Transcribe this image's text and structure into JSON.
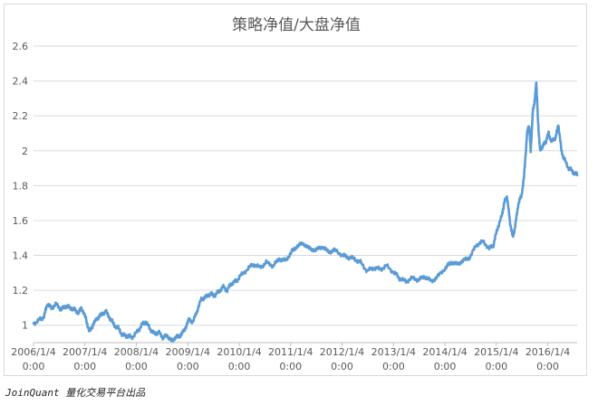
{
  "chart_data": {
    "type": "line",
    "title": "策略净值/大盘净值",
    "xlabel": "",
    "ylabel": "",
    "ylim": [
      0.0,
      2.6
    ],
    "y_ticks_shown": [
      1,
      1.2,
      1.4,
      1.6,
      1.8,
      2,
      2.2,
      2.4,
      2.6
    ],
    "y_tick_labels": [
      "1",
      "1.2",
      "1.4",
      "1.6",
      "1.8",
      "2",
      "2.2",
      "2.4",
      "2.6"
    ],
    "x_range": [
      "2006-01-04",
      "2016-07-31"
    ],
    "x_ticks": [
      {
        "date": "2006-01-04",
        "label": [
          "2006/1/4",
          "0:00"
        ]
      },
      {
        "date": "2007-01-04",
        "label": [
          "2007/1/4",
          "0:00"
        ]
      },
      {
        "date": "2008-01-04",
        "label": [
          "2008/1/4",
          "0:00"
        ]
      },
      {
        "date": "2009-01-04",
        "label": [
          "2009/1/4",
          "0:00"
        ]
      },
      {
        "date": "2010-01-04",
        "label": [
          "2010/1/4",
          "0:00"
        ]
      },
      {
        "date": "2011-01-04",
        "label": [
          "2011/1/4",
          "0:00"
        ]
      },
      {
        "date": "2012-01-04",
        "label": [
          "2012/1/4",
          "0:00"
        ]
      },
      {
        "date": "2013-01-04",
        "label": [
          "2013/1/4",
          "0:00"
        ]
      },
      {
        "date": "2014-01-04",
        "label": [
          "2014/1/4",
          "0:00"
        ]
      },
      {
        "date": "2015-01-04",
        "label": [
          "2015/1/4",
          "0:00"
        ]
      },
      {
        "date": "2016-01-04",
        "label": [
          "2016/1/4",
          "0:00"
        ]
      }
    ],
    "grid": true,
    "legend": "none",
    "series": [
      {
        "color": "#5b9bd5",
        "points": [
          [
            "2006-01-04",
            1.01
          ],
          [
            "2006-02-15",
            1.03
          ],
          [
            "2006-03-20",
            1.05
          ],
          [
            "2006-04-10",
            1.12
          ],
          [
            "2006-05-10",
            1.1
          ],
          [
            "2006-06-15",
            1.12
          ],
          [
            "2006-07-20",
            1.09
          ],
          [
            "2006-08-20",
            1.11
          ],
          [
            "2006-09-20",
            1.1
          ],
          [
            "2006-10-20",
            1.09
          ],
          [
            "2006-11-20",
            1.07
          ],
          [
            "2006-12-10",
            1.1
          ],
          [
            "2007-01-10",
            1.04
          ],
          [
            "2007-02-05",
            0.96
          ],
          [
            "2007-03-01",
            1.0
          ],
          [
            "2007-04-01",
            1.04
          ],
          [
            "2007-05-01",
            1.06
          ],
          [
            "2007-06-01",
            1.08
          ],
          [
            "2007-07-01",
            1.04
          ],
          [
            "2007-08-01",
            1.0
          ],
          [
            "2007-09-01",
            0.98
          ],
          [
            "2007-10-01",
            0.94
          ],
          [
            "2007-11-01",
            0.94
          ],
          [
            "2007-12-01",
            0.93
          ],
          [
            "2008-01-10",
            0.96
          ],
          [
            "2008-02-10",
            1.0
          ],
          [
            "2008-03-10",
            1.02
          ],
          [
            "2008-04-10",
            0.98
          ],
          [
            "2008-05-10",
            0.95
          ],
          [
            "2008-06-10",
            0.96
          ],
          [
            "2008-07-10",
            0.93
          ],
          [
            "2008-08-10",
            0.94
          ],
          [
            "2008-09-10",
            0.91
          ],
          [
            "2008-10-10",
            0.93
          ],
          [
            "2008-11-10",
            0.94
          ],
          [
            "2008-12-10",
            0.97
          ],
          [
            "2009-01-10",
            1.03
          ],
          [
            "2009-02-10",
            1.02
          ],
          [
            "2009-03-10",
            1.08
          ],
          [
            "2009-04-10",
            1.15
          ],
          [
            "2009-05-10",
            1.16
          ],
          [
            "2009-06-10",
            1.18
          ],
          [
            "2009-07-10",
            1.17
          ],
          [
            "2009-08-10",
            1.19
          ],
          [
            "2009-09-10",
            1.22
          ],
          [
            "2009-10-10",
            1.2
          ],
          [
            "2009-11-10",
            1.24
          ],
          [
            "2009-12-10",
            1.25
          ],
          [
            "2010-01-10",
            1.28
          ],
          [
            "2010-03-01",
            1.32
          ],
          [
            "2010-04-15",
            1.35
          ],
          [
            "2010-06-01",
            1.33
          ],
          [
            "2010-07-15",
            1.36
          ],
          [
            "2010-09-01",
            1.34
          ],
          [
            "2010-10-15",
            1.38
          ],
          [
            "2010-12-01",
            1.37
          ],
          [
            "2011-01-10",
            1.42
          ],
          [
            "2011-02-15",
            1.45
          ],
          [
            "2011-04-01",
            1.47
          ],
          [
            "2011-05-15",
            1.44
          ],
          [
            "2011-07-01",
            1.43
          ],
          [
            "2011-08-15",
            1.45
          ],
          [
            "2011-10-01",
            1.42
          ],
          [
            "2011-11-15",
            1.43
          ],
          [
            "2012-01-10",
            1.4
          ],
          [
            "2012-02-15",
            1.39
          ],
          [
            "2012-04-01",
            1.38
          ],
          [
            "2012-05-15",
            1.36
          ],
          [
            "2012-07-01",
            1.31
          ],
          [
            "2012-08-15",
            1.33
          ],
          [
            "2012-10-01",
            1.32
          ],
          [
            "2012-11-15",
            1.34
          ],
          [
            "2013-01-10",
            1.3
          ],
          [
            "2013-02-15",
            1.27
          ],
          [
            "2013-04-01",
            1.25
          ],
          [
            "2013-05-15",
            1.27
          ],
          [
            "2013-07-01",
            1.26
          ],
          [
            "2013-08-15",
            1.28
          ],
          [
            "2013-10-01",
            1.25
          ],
          [
            "2013-11-15",
            1.28
          ],
          [
            "2014-01-10",
            1.33
          ],
          [
            "2014-02-15",
            1.36
          ],
          [
            "2014-04-01",
            1.35
          ],
          [
            "2014-05-15",
            1.37
          ],
          [
            "2014-07-01",
            1.39
          ],
          [
            "2014-08-15",
            1.46
          ],
          [
            "2014-10-01",
            1.48
          ],
          [
            "2014-11-15",
            1.44
          ],
          [
            "2014-12-15",
            1.46
          ],
          [
            "2015-01-10",
            1.55
          ],
          [
            "2015-02-10",
            1.62
          ],
          [
            "2015-03-01",
            1.7
          ],
          [
            "2015-03-20",
            1.74
          ],
          [
            "2015-04-10",
            1.6
          ],
          [
            "2015-05-01",
            1.5
          ],
          [
            "2015-05-20",
            1.58
          ],
          [
            "2015-06-10",
            1.7
          ],
          [
            "2015-07-01",
            1.74
          ],
          [
            "2015-07-20",
            1.85
          ],
          [
            "2015-08-10",
            2.1
          ],
          [
            "2015-08-25",
            2.15
          ],
          [
            "2015-09-05",
            2.0
          ],
          [
            "2015-09-20",
            2.22
          ],
          [
            "2015-10-05",
            2.3
          ],
          [
            "2015-10-15",
            2.4
          ],
          [
            "2015-10-25",
            2.2
          ],
          [
            "2015-11-10",
            2.0
          ],
          [
            "2015-12-01",
            2.03
          ],
          [
            "2015-12-20",
            2.05
          ],
          [
            "2016-01-10",
            2.1
          ],
          [
            "2016-02-01",
            2.05
          ],
          [
            "2016-03-01",
            2.08
          ],
          [
            "2016-03-20",
            2.15
          ],
          [
            "2016-04-10",
            2.0
          ],
          [
            "2016-05-01",
            1.95
          ],
          [
            "2016-06-01",
            1.9
          ],
          [
            "2016-07-01",
            1.88
          ],
          [
            "2016-07-31",
            1.86
          ]
        ]
      }
    ]
  },
  "footer": {
    "credit_latin": "JoinQuant",
    "credit_cjk": "量化交易平台出品"
  }
}
